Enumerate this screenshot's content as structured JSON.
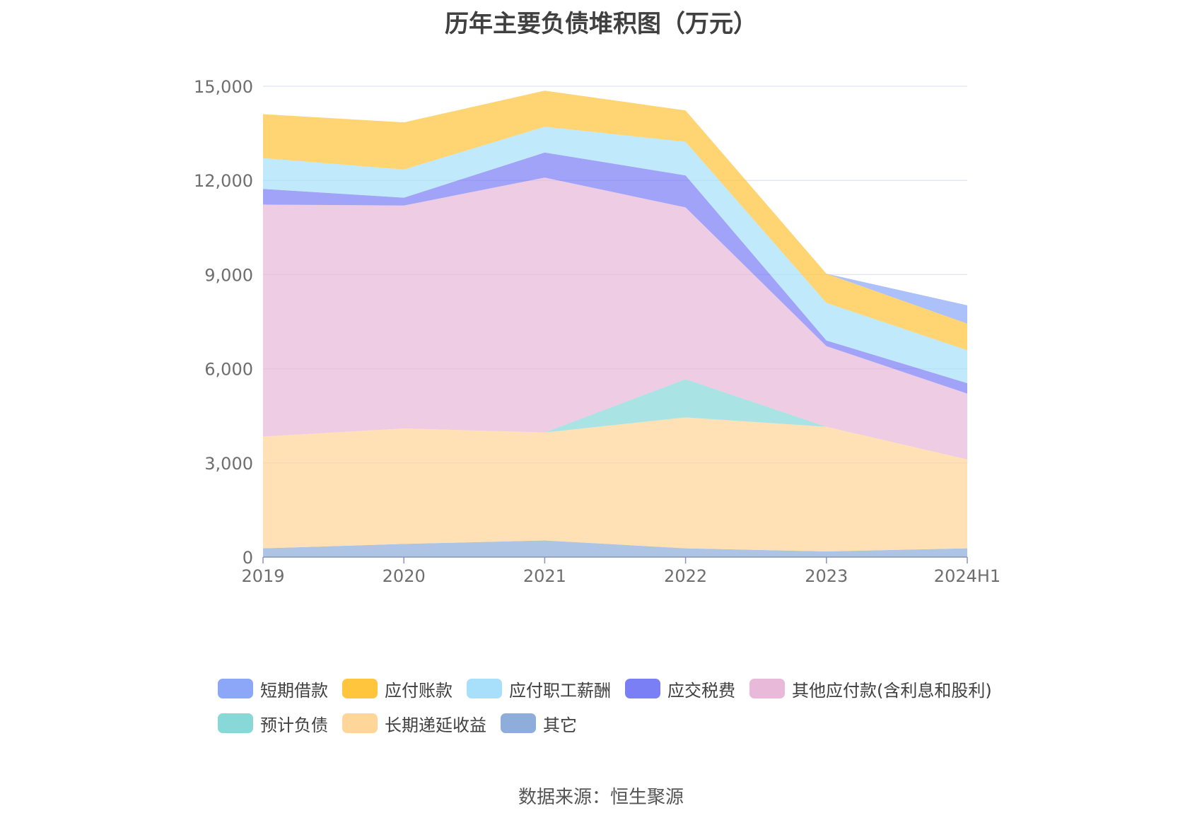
{
  "chart_data": {
    "type": "area",
    "stacked": true,
    "title": "历年主要负债堆积图（万元）",
    "categories": [
      "2019",
      "2020",
      "2021",
      "2022",
      "2023",
      "2024H1"
    ],
    "ylim": [
      0,
      15000
    ],
    "yticks": [
      0,
      3000,
      6000,
      9000,
      12000,
      15000
    ],
    "ytick_labels": [
      "0",
      "3,000",
      "6,000",
      "9,000",
      "12,000",
      "15,000"
    ],
    "grid": true,
    "legend_position": "bottom",
    "series": [
      {
        "name": "其它",
        "values": [
          280,
          420,
          530,
          280,
          180,
          280
        ],
        "color": "#8eaddb"
      },
      {
        "name": "长期递延收益",
        "values": [
          3560,
          3680,
          3440,
          4170,
          3970,
          2830
        ],
        "color": "#ffd699"
      },
      {
        "name": "预计负债",
        "values": [
          0,
          0,
          0,
          1220,
          0,
          0
        ],
        "color": "#88d8d8"
      },
      {
        "name": "其他应付款(含利息和股利)",
        "values": [
          7390,
          7100,
          8120,
          5470,
          2570,
          2100
        ],
        "color": "#e8b9d9"
      },
      {
        "name": "应交税费",
        "values": [
          500,
          250,
          800,
          1020,
          180,
          330
        ],
        "color": "#7b7ff5"
      },
      {
        "name": "应付职工薪酬",
        "values": [
          980,
          900,
          820,
          1070,
          1200,
          1050
        ],
        "color": "#a8e0fb"
      },
      {
        "name": "应付账款",
        "values": [
          1400,
          1500,
          1150,
          1000,
          930,
          850
        ],
        "color": "#ffc53d"
      },
      {
        "name": "短期借款",
        "values": [
          0,
          0,
          0,
          0,
          0,
          580
        ],
        "color": "#8ca7f7"
      }
    ]
  },
  "legend": {
    "rows": [
      [
        {
          "label": "短期借款",
          "color": "#8ca7f7"
        },
        {
          "label": "应付账款",
          "color": "#ffc53d"
        },
        {
          "label": "应付职工薪酬",
          "color": "#a8e0fb"
        },
        {
          "label": "应交税费",
          "color": "#7b7ff5"
        },
        {
          "label": "其他应付款(含利息和股利)",
          "color": "#e8b9d9"
        }
      ],
      [
        {
          "label": "预计负债",
          "color": "#88d8d8"
        },
        {
          "label": "长期递延收益",
          "color": "#ffd699"
        },
        {
          "label": "其它",
          "color": "#8eaddb"
        }
      ]
    ]
  },
  "source": "数据来源：恒生聚源"
}
